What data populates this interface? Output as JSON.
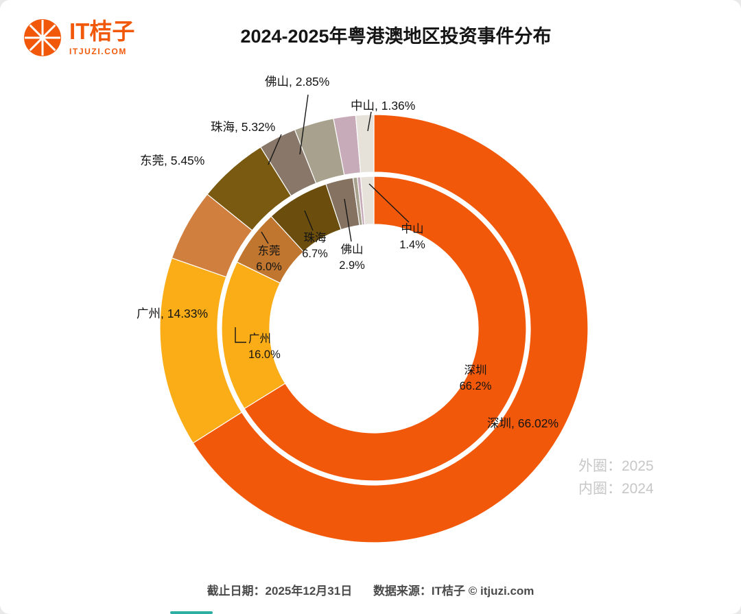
{
  "header": {
    "logo_title": "IT桔子",
    "logo_subtitle": "ITJUZI.COM",
    "title": "2024-2025年粤港澳地区投资事件分布"
  },
  "chart_data": {
    "type": "pie",
    "subtype": "nested-donut",
    "title": "2024-2025年粤港澳地区投资事件分布",
    "direction": "clockwise",
    "start_angle_deg": 0,
    "legend": {
      "outer": "外圈：2025",
      "inner": "内圈：2024"
    },
    "rings": [
      {
        "year": "2025",
        "position": "outer",
        "slices": [
          {
            "key": "shenzhen",
            "label": "深圳",
            "value": 66.02,
            "color": "#F2580A"
          },
          {
            "key": "guangzhou",
            "label": "广州",
            "value": 14.33,
            "color": "#FBAD18"
          },
          {
            "key": "dongguan",
            "label": "东莞",
            "value": 5.45,
            "color": "#D17F3E"
          },
          {
            "key": "zhuhai",
            "label": "珠海",
            "value": 5.32,
            "color": "#7A5A11"
          },
          {
            "key": "foshan",
            "label": "佛山",
            "value": 2.85,
            "color": "#897869"
          },
          {
            "key": "unlabeled-1",
            "label": "",
            "value": 3.0,
            "color": "#A7A18D"
          },
          {
            "key": "unlabeled-2",
            "label": "",
            "value": 1.67,
            "color": "#C7ABB9"
          },
          {
            "key": "zhongshan",
            "label": "中山",
            "value": 1.36,
            "color": "#E6E2DA"
          }
        ]
      },
      {
        "year": "2024",
        "position": "inner",
        "slices": [
          {
            "key": "shenzhen",
            "label": "深圳",
            "value": 66.2,
            "color": "#F2580A"
          },
          {
            "key": "guangzhou",
            "label": "广州",
            "value": 16.0,
            "color": "#FBAD18"
          },
          {
            "key": "dongguan",
            "label": "东莞",
            "value": 6.0,
            "color": "#C0762E"
          },
          {
            "key": "zhuhai",
            "label": "珠海",
            "value": 6.7,
            "color": "#6B4E0E"
          },
          {
            "key": "foshan",
            "label": "佛山",
            "value": 2.9,
            "color": "#857260"
          },
          {
            "key": "unlabeled-1",
            "label": "",
            "value": 0.45,
            "color": "#A7A18D"
          },
          {
            "key": "unlabeled-2",
            "label": "",
            "value": 0.35,
            "color": "#C7ABB9"
          },
          {
            "key": "zhongshan",
            "label": "中山",
            "value": 1.4,
            "color": "#E6E2DA"
          }
        ]
      }
    ],
    "labels": {
      "outer": {
        "foshan": "佛山, 2.85%",
        "zhongshan": "中山, 1.36%",
        "zhuhai": "珠海, 5.32%",
        "dongguan": "东莞, 5.45%",
        "guangzhou": "广州, 14.33%",
        "shenzhen": "深圳, 66.02%"
      },
      "inner": {
        "zhongshan": {
          "name": "中山",
          "pct": "1.4%"
        },
        "foshan": {
          "name": "佛山",
          "pct": "2.9%"
        },
        "zhuhai": {
          "name": "珠海",
          "pct": "6.7%"
        },
        "dongguan": {
          "name": "东莞",
          "pct": "6.0%"
        },
        "guangzhou": {
          "name": "广州",
          "pct": "16.0%"
        },
        "shenzhen": {
          "name": "深圳",
          "pct": "66.2%"
        }
      }
    }
  },
  "footer": {
    "date": "截止日期：2025年12月31日",
    "source": "数据来源：IT桔子 © itjuzi.com"
  }
}
